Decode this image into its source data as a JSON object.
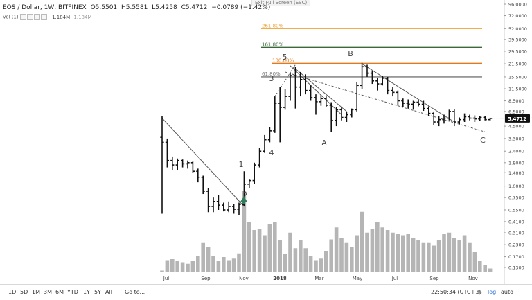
{
  "legend": {
    "symbol": "EOS / Dollar, 1W, BITFINEX",
    "open": "O5.5501",
    "high": "H5.5581",
    "low": "L5.4258",
    "close": "C5.4712",
    "change": "−0.0789 (−1.42%)"
  },
  "volume_label": "Vol (1)",
  "volume_values": [
    "1.184M",
    "1.184M"
  ],
  "exit_fullscreen": "Exit Full Screen (ESC)",
  "bottom": {
    "ranges": [
      "1D",
      "5D",
      "1M",
      "3M",
      "6M",
      "YTD",
      "1Y",
      "5Y",
      "All"
    ],
    "goto": "Go to...",
    "time": "22:50:34 (UTC+1)",
    "percent": "%",
    "log": "log",
    "auto": "auto"
  },
  "colors": {
    "bar": "#111111",
    "volume": "#b5b5b5",
    "trend": "#555555",
    "fib_261": "#f0a030",
    "fib_161": "#3a6a3a",
    "fib_100": "#e07a1f",
    "fib_618": "#777777",
    "last_price_bg": "#111111",
    "arrow": "#2e7d5b"
  },
  "chart_data": {
    "type": "ohlc",
    "scale": "log",
    "x_labels": [
      "Jul",
      "Sep",
      "Nov",
      "2018",
      "Mar",
      "May",
      "Jul",
      "Sep",
      "Nov"
    ],
    "y_ticks": [
      "96.0000",
      "72.0000",
      "52.0000",
      "39.5000",
      "29.5000",
      "21.5000",
      "15.5000",
      "11.5000",
      "8.5000",
      "6.5000",
      "4.5000",
      "3.3000",
      "2.4000",
      "1.8000",
      "1.4000",
      "1.0000",
      "0.7500",
      "0.5500",
      "0.4100",
      "0.3100",
      "0.2300",
      "0.1700",
      "0.1300"
    ],
    "last_price": "5.4712",
    "fib_levels": [
      {
        "label": "261.80%",
        "price": 52.0
      },
      {
        "label": "161.80%",
        "price": 32.5
      },
      {
        "label": "100.00%",
        "price": 21.8
      },
      {
        "label": "61.80%",
        "price": 15.5
      }
    ],
    "wave_labels": [
      "5",
      "3",
      "1",
      "2",
      "4",
      "A",
      "B",
      "C"
    ],
    "series": [
      {
        "o": 3.4,
        "h": 5.8,
        "l": 0.5,
        "c": 3.0
      },
      {
        "o": 3.0,
        "h": 3.3,
        "l": 1.6,
        "c": 1.9
      },
      {
        "o": 1.9,
        "h": 2.1,
        "l": 1.5,
        "c": 1.7
      },
      {
        "o": 1.7,
        "h": 2.0,
        "l": 1.5,
        "c": 1.9
      },
      {
        "o": 1.9,
        "h": 1.95,
        "l": 1.6,
        "c": 1.75
      },
      {
        "o": 1.75,
        "h": 1.9,
        "l": 1.55,
        "c": 1.8
      },
      {
        "o": 1.8,
        "h": 1.85,
        "l": 1.4,
        "c": 1.45
      },
      {
        "o": 1.45,
        "h": 1.55,
        "l": 1.1,
        "c": 1.25
      },
      {
        "o": 1.25,
        "h": 1.3,
        "l": 0.82,
        "c": 0.88
      },
      {
        "o": 0.88,
        "h": 0.95,
        "l": 0.52,
        "c": 0.6
      },
      {
        "o": 0.6,
        "h": 0.75,
        "l": 0.52,
        "c": 0.68
      },
      {
        "o": 0.68,
        "h": 0.8,
        "l": 0.55,
        "c": 0.62
      },
      {
        "o": 0.62,
        "h": 0.66,
        "l": 0.53,
        "c": 0.55
      },
      {
        "o": 0.55,
        "h": 0.68,
        "l": 0.52,
        "c": 0.6
      },
      {
        "o": 0.6,
        "h": 0.64,
        "l": 0.5,
        "c": 0.56
      },
      {
        "o": 0.56,
        "h": 0.66,
        "l": 0.48,
        "c": 0.63
      },
      {
        "o": 0.63,
        "h": 1.45,
        "l": 0.6,
        "c": 1.05
      },
      {
        "o": 1.05,
        "h": 1.2,
        "l": 0.95,
        "c": 1.15
      },
      {
        "o": 1.15,
        "h": 1.8,
        "l": 1.05,
        "c": 1.7
      },
      {
        "o": 1.7,
        "h": 2.6,
        "l": 1.6,
        "c": 2.4
      },
      {
        "o": 2.4,
        "h": 3.6,
        "l": 2.3,
        "c": 3.2
      },
      {
        "o": 3.2,
        "h": 4.4,
        "l": 3.0,
        "c": 4.0
      },
      {
        "o": 4.0,
        "h": 9.5,
        "l": 3.8,
        "c": 8.0
      },
      {
        "o": 8.0,
        "h": 12.0,
        "l": 3.0,
        "c": 7.2
      },
      {
        "o": 7.2,
        "h": 11.5,
        "l": 6.8,
        "c": 9.5
      },
      {
        "o": 9.5,
        "h": 17.0,
        "l": 8.5,
        "c": 16.0
      },
      {
        "o": 16.0,
        "h": 20.0,
        "l": 7.0,
        "c": 12.0
      },
      {
        "o": 12.0,
        "h": 17.5,
        "l": 9.5,
        "c": 14.5
      },
      {
        "o": 14.5,
        "h": 16.5,
        "l": 10.0,
        "c": 11.0
      },
      {
        "o": 11.0,
        "h": 12.5,
        "l": 8.5,
        "c": 9.2
      },
      {
        "o": 9.2,
        "h": 10.0,
        "l": 6.0,
        "c": 8.3
      },
      {
        "o": 8.3,
        "h": 9.8,
        "l": 7.5,
        "c": 9.0
      },
      {
        "o": 9.0,
        "h": 9.5,
        "l": 7.2,
        "c": 7.6
      },
      {
        "o": 7.6,
        "h": 8.2,
        "l": 3.9,
        "c": 5.2
      },
      {
        "o": 5.2,
        "h": 7.2,
        "l": 4.5,
        "c": 6.8
      },
      {
        "o": 6.8,
        "h": 7.2,
        "l": 5.2,
        "c": 5.6
      },
      {
        "o": 5.6,
        "h": 6.5,
        "l": 5.0,
        "c": 6.0
      },
      {
        "o": 6.0,
        "h": 7.0,
        "l": 5.6,
        "c": 6.8
      },
      {
        "o": 6.8,
        "h": 13.5,
        "l": 6.5,
        "c": 12.5
      },
      {
        "o": 12.5,
        "h": 22.0,
        "l": 11.5,
        "c": 20.0
      },
      {
        "o": 20.0,
        "h": 21.0,
        "l": 15.5,
        "c": 17.0
      },
      {
        "o": 17.0,
        "h": 18.0,
        "l": 13.0,
        "c": 14.0
      },
      {
        "o": 14.0,
        "h": 15.0,
        "l": 11.0,
        "c": 13.0
      },
      {
        "o": 13.0,
        "h": 16.0,
        "l": 12.5,
        "c": 15.0
      },
      {
        "o": 15.0,
        "h": 15.5,
        "l": 10.0,
        "c": 11.0
      },
      {
        "o": 11.0,
        "h": 12.0,
        "l": 9.5,
        "c": 10.5
      },
      {
        "o": 10.5,
        "h": 11.0,
        "l": 7.5,
        "c": 8.5
      },
      {
        "o": 8.5,
        "h": 9.0,
        "l": 7.2,
        "c": 8.0
      },
      {
        "o": 8.0,
        "h": 8.8,
        "l": 7.0,
        "c": 7.8
      },
      {
        "o": 7.8,
        "h": 8.5,
        "l": 6.8,
        "c": 8.2
      },
      {
        "o": 8.2,
        "h": 8.6,
        "l": 7.4,
        "c": 7.8
      },
      {
        "o": 7.8,
        "h": 8.5,
        "l": 6.6,
        "c": 7.0
      },
      {
        "o": 7.0,
        "h": 7.4,
        "l": 5.8,
        "c": 6.2
      },
      {
        "o": 6.2,
        "h": 6.5,
        "l": 4.6,
        "c": 5.0
      },
      {
        "o": 5.0,
        "h": 5.8,
        "l": 4.5,
        "c": 5.3
      },
      {
        "o": 5.3,
        "h": 6.0,
        "l": 4.8,
        "c": 5.5
      },
      {
        "o": 5.5,
        "h": 6.8,
        "l": 5.2,
        "c": 6.5
      },
      {
        "o": 6.5,
        "h": 6.9,
        "l": 4.5,
        "c": 5.0
      },
      {
        "o": 5.0,
        "h": 5.6,
        "l": 4.7,
        "c": 5.3
      },
      {
        "o": 5.3,
        "h": 6.2,
        "l": 5.0,
        "c": 5.7
      },
      {
        "o": 5.7,
        "h": 6.0,
        "l": 5.2,
        "c": 5.5
      },
      {
        "o": 5.5,
        "h": 5.9,
        "l": 5.0,
        "c": 5.4
      },
      {
        "o": 5.4,
        "h": 5.8,
        "l": 5.1,
        "c": 5.6
      },
      {
        "o": 5.6,
        "h": 5.8,
        "l": 5.2,
        "c": 5.3
      },
      {
        "o": 5.3,
        "h": 5.56,
        "l": 5.2,
        "c": 5.47
      }
    ],
    "volume": [
      0.02,
      0.22,
      0.24,
      0.2,
      0.18,
      0.15,
      0.2,
      0.3,
      0.55,
      0.48,
      0.3,
      0.2,
      0.28,
      0.22,
      0.25,
      0.35,
      1.55,
      0.95,
      0.8,
      0.82,
      0.7,
      0.92,
      0.95,
      0.6,
      0.34,
      0.75,
      0.45,
      0.6,
      0.45,
      0.3,
      0.22,
      0.25,
      0.4,
      0.62,
      0.85,
      0.65,
      0.55,
      0.48,
      0.7,
      1.15,
      0.75,
      0.82,
      0.95,
      0.85,
      0.8,
      0.75,
      0.72,
      0.7,
      0.72,
      0.65,
      0.6,
      0.55,
      0.55,
      0.5,
      0.6,
      0.72,
      0.75,
      0.65,
      0.6,
      0.7,
      0.55,
      0.38,
      0.2,
      0.12,
      0.06
    ]
  }
}
